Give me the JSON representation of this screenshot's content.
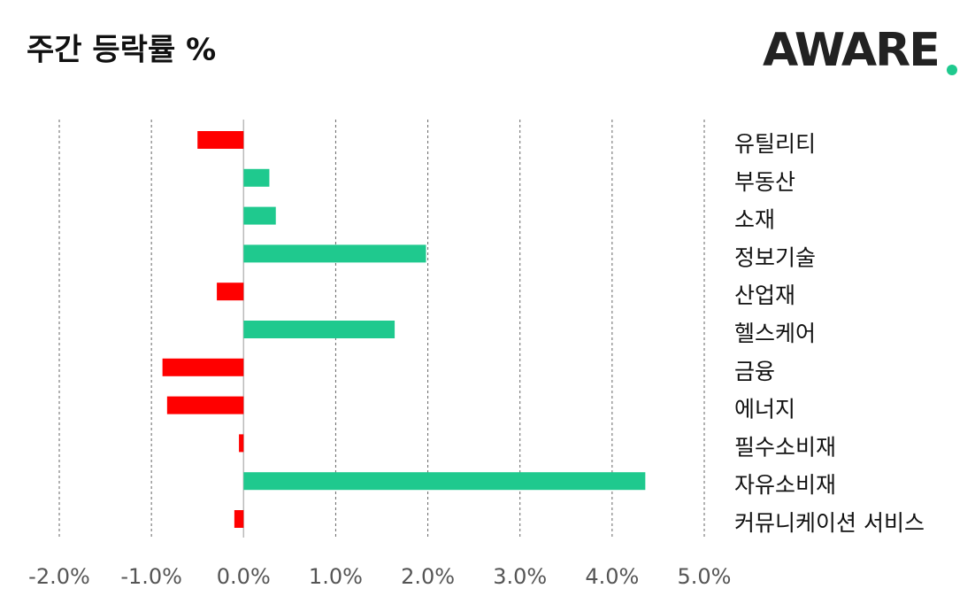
{
  "chart_data": {
    "type": "barh",
    "title": "주간 등락률 %",
    "logo": "AWARE",
    "categories": [
      "유틸리티",
      "부동산",
      "소재",
      "정보기술",
      "산업재",
      "헬스케어",
      "금융",
      "에너지",
      "필수소비재",
      "자유소비재",
      "커뮤니케이션 서비스"
    ],
    "values": [
      -0.5,
      0.28,
      0.35,
      1.98,
      -0.29,
      1.64,
      -0.88,
      -0.83,
      -0.05,
      4.36,
      -0.1
    ],
    "positive_color": "#1fc98e",
    "negative_color": "#ff0000",
    "xlim": [
      -2,
      5
    ],
    "xticks": [
      {
        "value": -2,
        "label": "-2.0%"
      },
      {
        "value": -1,
        "label": "-1.0%"
      },
      {
        "value": 0,
        "label": "0.0%"
      },
      {
        "value": 1,
        "label": "1.0%"
      },
      {
        "value": 2,
        "label": "2.0%"
      },
      {
        "value": 3,
        "label": "3.0%"
      },
      {
        "value": 4,
        "label": "4.0%"
      },
      {
        "value": 5,
        "label": "5.0%"
      }
    ],
    "grid": true
  }
}
